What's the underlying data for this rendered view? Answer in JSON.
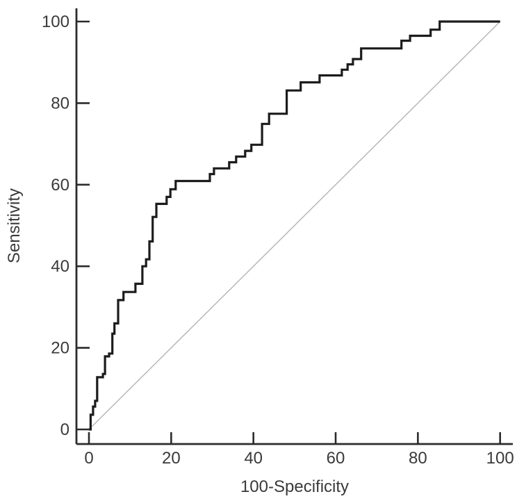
{
  "page": {
    "background": "#ffffff"
  },
  "chart_data": {
    "type": "line",
    "subtype": "roc-step-curve",
    "title": "",
    "xlabel": "100-Specificity",
    "ylabel": "Sensitivity",
    "xlim": [
      0,
      100
    ],
    "ylim": [
      0,
      100
    ],
    "x_ticks": [
      0,
      20,
      40,
      60,
      80,
      100
    ],
    "y_ticks": [
      0,
      20,
      40,
      60,
      80,
      100
    ],
    "grid": false,
    "legend": "none",
    "axis_color": "#2b2b2b",
    "text_color": "#3a3a3a",
    "series": [
      {
        "name": "roc-curve",
        "color": "#1c1c1c",
        "stroke_width": 3.2,
        "points": [
          [
            0,
            0
          ],
          [
            0.4,
            0
          ],
          [
            0.4,
            3.6
          ],
          [
            1,
            3.6
          ],
          [
            1,
            5.6
          ],
          [
            1.5,
            5.6
          ],
          [
            1.5,
            7
          ],
          [
            2,
            7
          ],
          [
            2,
            12.8
          ],
          [
            3.4,
            12.8
          ],
          [
            3.4,
            13.6
          ],
          [
            3.9,
            13.6
          ],
          [
            3.9,
            17.9
          ],
          [
            4.9,
            17.9
          ],
          [
            4.9,
            18.6
          ],
          [
            5.7,
            18.6
          ],
          [
            5.7,
            23.5
          ],
          [
            6.2,
            23.5
          ],
          [
            6.2,
            26
          ],
          [
            7.1,
            26
          ],
          [
            7.1,
            31.7
          ],
          [
            8.4,
            31.7
          ],
          [
            8.4,
            33.7
          ],
          [
            11.3,
            33.7
          ],
          [
            11.3,
            35.7
          ],
          [
            13,
            35.7
          ],
          [
            13,
            40
          ],
          [
            13.9,
            40
          ],
          [
            13.9,
            41.7
          ],
          [
            14.7,
            41.7
          ],
          [
            14.7,
            46.1
          ],
          [
            15.5,
            46.1
          ],
          [
            15.5,
            52.1
          ],
          [
            16.4,
            52.1
          ],
          [
            16.4,
            55.3
          ],
          [
            18.9,
            55.3
          ],
          [
            18.9,
            57
          ],
          [
            19.8,
            57
          ],
          [
            19.8,
            58.9
          ],
          [
            21.1,
            58.9
          ],
          [
            21.1,
            60.9
          ],
          [
            29.4,
            60.9
          ],
          [
            29.4,
            62.6
          ],
          [
            30.4,
            62.6
          ],
          [
            30.4,
            64
          ],
          [
            34.1,
            64
          ],
          [
            34.1,
            65.5
          ],
          [
            35.8,
            65.5
          ],
          [
            35.8,
            66.9
          ],
          [
            38,
            66.9
          ],
          [
            38,
            68.3
          ],
          [
            39.5,
            68.3
          ],
          [
            39.5,
            69.8
          ],
          [
            42.1,
            69.8
          ],
          [
            42.1,
            74.9
          ],
          [
            43.8,
            74.9
          ],
          [
            43.8,
            77.4
          ],
          [
            48.1,
            77.4
          ],
          [
            48.1,
            83.1
          ],
          [
            51.5,
            83.1
          ],
          [
            51.5,
            85.1
          ],
          [
            56.1,
            85.1
          ],
          [
            56.1,
            86.8
          ],
          [
            61.5,
            86.8
          ],
          [
            61.5,
            88.2
          ],
          [
            62.9,
            88.2
          ],
          [
            62.9,
            89.5
          ],
          [
            64.2,
            89.5
          ],
          [
            64.2,
            90.8
          ],
          [
            66.2,
            90.8
          ],
          [
            66.2,
            93.4
          ],
          [
            76,
            93.4
          ],
          [
            76,
            95.3
          ],
          [
            78.1,
            95.3
          ],
          [
            78.1,
            96.5
          ],
          [
            83.1,
            96.5
          ],
          [
            83.1,
            98
          ],
          [
            85.3,
            98
          ],
          [
            85.3,
            100
          ],
          [
            100,
            100
          ]
        ]
      },
      {
        "name": "reference-diagonal",
        "color": "#b4b4b4",
        "stroke_width": 1.4,
        "points": [
          [
            0,
            0
          ],
          [
            100,
            100
          ]
        ]
      }
    ]
  }
}
